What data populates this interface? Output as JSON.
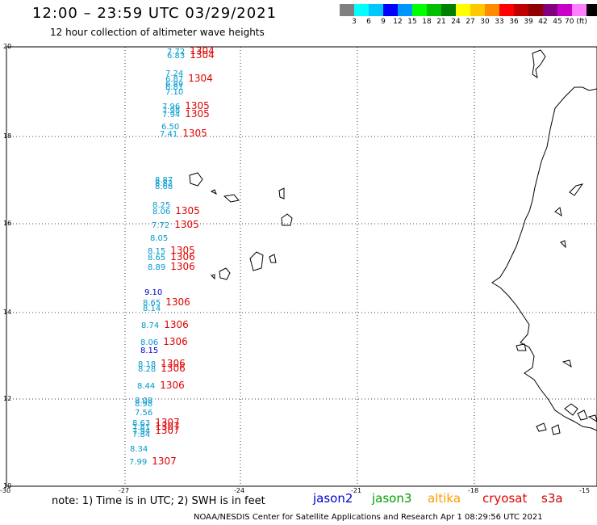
{
  "header": {
    "title": "12:00 – 23:59 UTC 03/29/2021",
    "subtitle": "12 hour collection of altimeter wave heights"
  },
  "colorbar": {
    "colors": [
      "#808080",
      "#00ffff",
      "#00c8ff",
      "#0000ff",
      "#0096ff",
      "#00ff00",
      "#00c000",
      "#008000",
      "#ffff00",
      "#ffc800",
      "#ff8c00",
      "#ff0000",
      "#c00000",
      "#900000",
      "#800080",
      "#c800c8",
      "#ff80ff",
      "#000000"
    ],
    "labels": [
      "3",
      "6",
      "9",
      "12",
      "15",
      "18",
      "21",
      "24",
      "27",
      "30",
      "33",
      "36",
      "39",
      "42",
      "45",
      "70 (ft)"
    ]
  },
  "axes": {
    "lat_labels": [
      "20",
      "18",
      "16",
      "14",
      "12",
      "10"
    ],
    "lon_labels": [
      "-30",
      "-27",
      "-24",
      "-21",
      "-18",
      "-15"
    ]
  },
  "observations": [
    {
      "h": "7.72",
      "c": "1304"
    },
    {
      "h": "6.83",
      "c": "1304"
    },
    {
      "h": "7.24",
      "c": ""
    },
    {
      "h": "6.87",
      "c": "1304"
    },
    {
      "h": "6.89",
      "c": ""
    },
    {
      "h": "6.81",
      "c": ""
    },
    {
      "h": "7.10",
      "c": ""
    },
    {
      "h": "7.96",
      "c": "1305"
    },
    {
      "h": "7.98",
      "c": ""
    },
    {
      "h": "7.94",
      "c": "1305"
    },
    {
      "h": "6.50",
      "c": ""
    },
    {
      "h": "7.41",
      "c": "1305"
    },
    {
      "h": "8.87",
      "c": ""
    },
    {
      "h": "8.82",
      "c": ""
    },
    {
      "h": "8.68",
      "c": ""
    },
    {
      "h": "8.25",
      "c": ""
    },
    {
      "h": "8.06",
      "c": "1305"
    },
    {
      "h": "7.72",
      "c": "1305"
    },
    {
      "h": "8.05",
      "c": ""
    },
    {
      "h": "8.15",
      "c": "1305"
    },
    {
      "h": "8.65",
      "c": "1306"
    },
    {
      "h": "8.89",
      "c": "1306"
    },
    {
      "h": "9.10",
      "c": ""
    },
    {
      "h": "8.65",
      "c": "1306"
    },
    {
      "h": "8.14",
      "c": ""
    },
    {
      "h": "8.74",
      "c": "1306"
    },
    {
      "h": "8.06",
      "c": "1306"
    },
    {
      "h": "8.15",
      "c": ""
    },
    {
      "h": "8.18",
      "c": "1306"
    },
    {
      "h": "8.28",
      "c": "1306"
    },
    {
      "h": "8.44",
      "c": "1306"
    },
    {
      "h": "8.08",
      "c": ""
    },
    {
      "h": "8.98",
      "c": ""
    },
    {
      "h": "7.56",
      "c": ""
    },
    {
      "h": "8.63",
      "c": "1307"
    },
    {
      "h": "7.81",
      "c": "1307"
    },
    {
      "h": "7.94",
      "c": "1307"
    },
    {
      "h": "7.84",
      "c": ""
    },
    {
      "h": "8.34",
      "c": ""
    },
    {
      "h": "7.99",
      "c": "1307"
    }
  ],
  "note": "note:  1) Time is in UTC;  2) SWH is in feet",
  "legend": [
    {
      "label": "jason2",
      "color": "#0000cc"
    },
    {
      "label": "jason3",
      "color": "#00a000"
    },
    {
      "label": "altika",
      "color": "#ff9900"
    },
    {
      "label": "cryosat",
      "color": "#e00000"
    },
    {
      "label": "s3a",
      "color": "#cc0000"
    }
  ],
  "footer": "NOAA/NESDIS Center for Satellite Applications and Research   Apr  1 08:29:56 UTC 2021"
}
